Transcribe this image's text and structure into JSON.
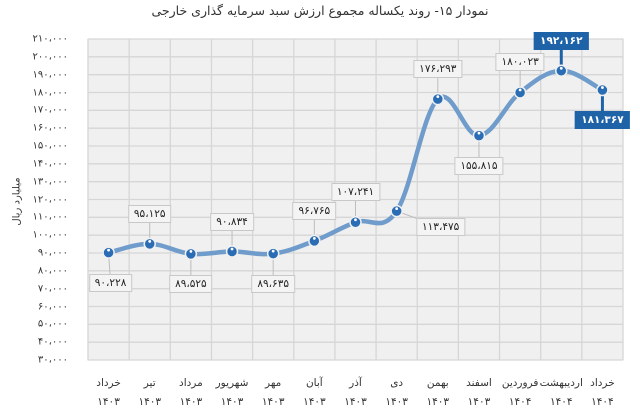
{
  "title": "نمودار ۱۵- روند یکساله مجموع ارزش سبد سرمایه گذاری خارجی",
  "chart_data": {
    "type": "line",
    "title": "نمودار ۱۵- روند یکساله مجموع ارزش سبد سرمایه گذاری خارجی",
    "xlabel": "",
    "ylabel": "میلیارد ریال",
    "ylim": [
      30000,
      210000
    ],
    "ytick_step": 10000,
    "grid": true,
    "legend": false,
    "categories": [
      "خرداد ۱۴۰۳",
      "تیر ۱۴۰۳",
      "مرداد ۱۴۰۳",
      "شهریور ۱۴۰۳",
      "مهر ۱۴۰۳",
      "آبان ۱۴۰۳",
      "آذر ۱۴۰۳",
      "دی ۱۴۰۳",
      "بهمن ۱۴۰۳",
      "اسفند ۱۴۰۳",
      "فروردین ۱۴۰۴",
      "اردیبهشت ۱۴۰۴",
      "خرداد ۱۴۰۴"
    ],
    "series": [
      {
        "name": "مجموع ارزش سبد سرمایه گذاری خارجی",
        "values": [
          90228,
          95125,
          89525,
          90834,
          89635,
          96765,
          107241,
          113475,
          176293,
          155815,
          180023,
          192162,
          181367
        ]
      }
    ],
    "color": "#6f9ccb",
    "marker_color": "#2a6db5",
    "highlight_color": "#1e62a8"
  },
  "axis": {
    "yticks": [
      "۳۰،۰۰۰",
      "۴۰،۰۰۰",
      "۵۰،۰۰۰",
      "۶۰،۰۰۰",
      "۷۰،۰۰۰",
      "۸۰،۰۰۰",
      "۹۰،۰۰۰",
      "۱۰۰،۰۰۰",
      "۱۱۰،۰۰۰",
      "۱۲۰،۰۰۰",
      "۱۳۰،۰۰۰",
      "۱۴۰،۰۰۰",
      "۱۵۰،۰۰۰",
      "۱۶۰،۰۰۰",
      "۱۷۰،۰۰۰",
      "۱۸۰،۰۰۰",
      "۱۹۰،۰۰۰",
      "۲۰۰،۰۰۰",
      "۲۱۰،۰۰۰"
    ],
    "ylabel": "میلیارد ریال",
    "xlabels": [
      {
        "month": "خرداد",
        "year": "۱۴۰۳"
      },
      {
        "month": "تیر",
        "year": "۱۴۰۳"
      },
      {
        "month": "مرداد",
        "year": "۱۴۰۳"
      },
      {
        "month": "شهریور",
        "year": "۱۴۰۳"
      },
      {
        "month": "مهر",
        "year": "۱۴۰۳"
      },
      {
        "month": "آبان",
        "year": "۱۴۰۳"
      },
      {
        "month": "آذر",
        "year": "۱۴۰۳"
      },
      {
        "month": "دی",
        "year": "۱۴۰۳"
      },
      {
        "month": "بهمن",
        "year": "۱۴۰۳"
      },
      {
        "month": "اسفند",
        "year": "۱۴۰۳"
      },
      {
        "month": "فروردین",
        "year": "۱۴۰۴"
      },
      {
        "month": "اردیبهشت",
        "year": "۱۴۰۴"
      },
      {
        "month": "خرداد",
        "year": "۱۴۰۴"
      }
    ]
  },
  "data_labels": [
    {
      "text": "۹۰،۲۲۸",
      "pos": "below",
      "highlight": false
    },
    {
      "text": "۹۵،۱۲۵",
      "pos": "above",
      "highlight": false
    },
    {
      "text": "۸۹،۵۲۵",
      "pos": "below",
      "highlight": false
    },
    {
      "text": "۹۰،۸۳۴",
      "pos": "above",
      "highlight": false
    },
    {
      "text": "۸۹،۶۳۵",
      "pos": "below",
      "highlight": false
    },
    {
      "text": "۹۶،۷۶۵",
      "pos": "above",
      "highlight": false
    },
    {
      "text": "۱۰۷،۲۴۱",
      "pos": "above",
      "highlight": false
    },
    {
      "text": "۱۱۳،۴۷۵",
      "pos": "below-right",
      "highlight": false
    },
    {
      "text": "۱۷۶،۲۹۳",
      "pos": "above",
      "highlight": false
    },
    {
      "text": "۱۵۵،۸۱۵",
      "pos": "below",
      "highlight": false
    },
    {
      "text": "۱۸۰،۰۲۳",
      "pos": "above",
      "highlight": false
    },
    {
      "text": "۱۹۲،۱۶۲",
      "pos": "above",
      "highlight": true
    },
    {
      "text": "۱۸۱،۳۶۷",
      "pos": "below",
      "highlight": true
    }
  ]
}
